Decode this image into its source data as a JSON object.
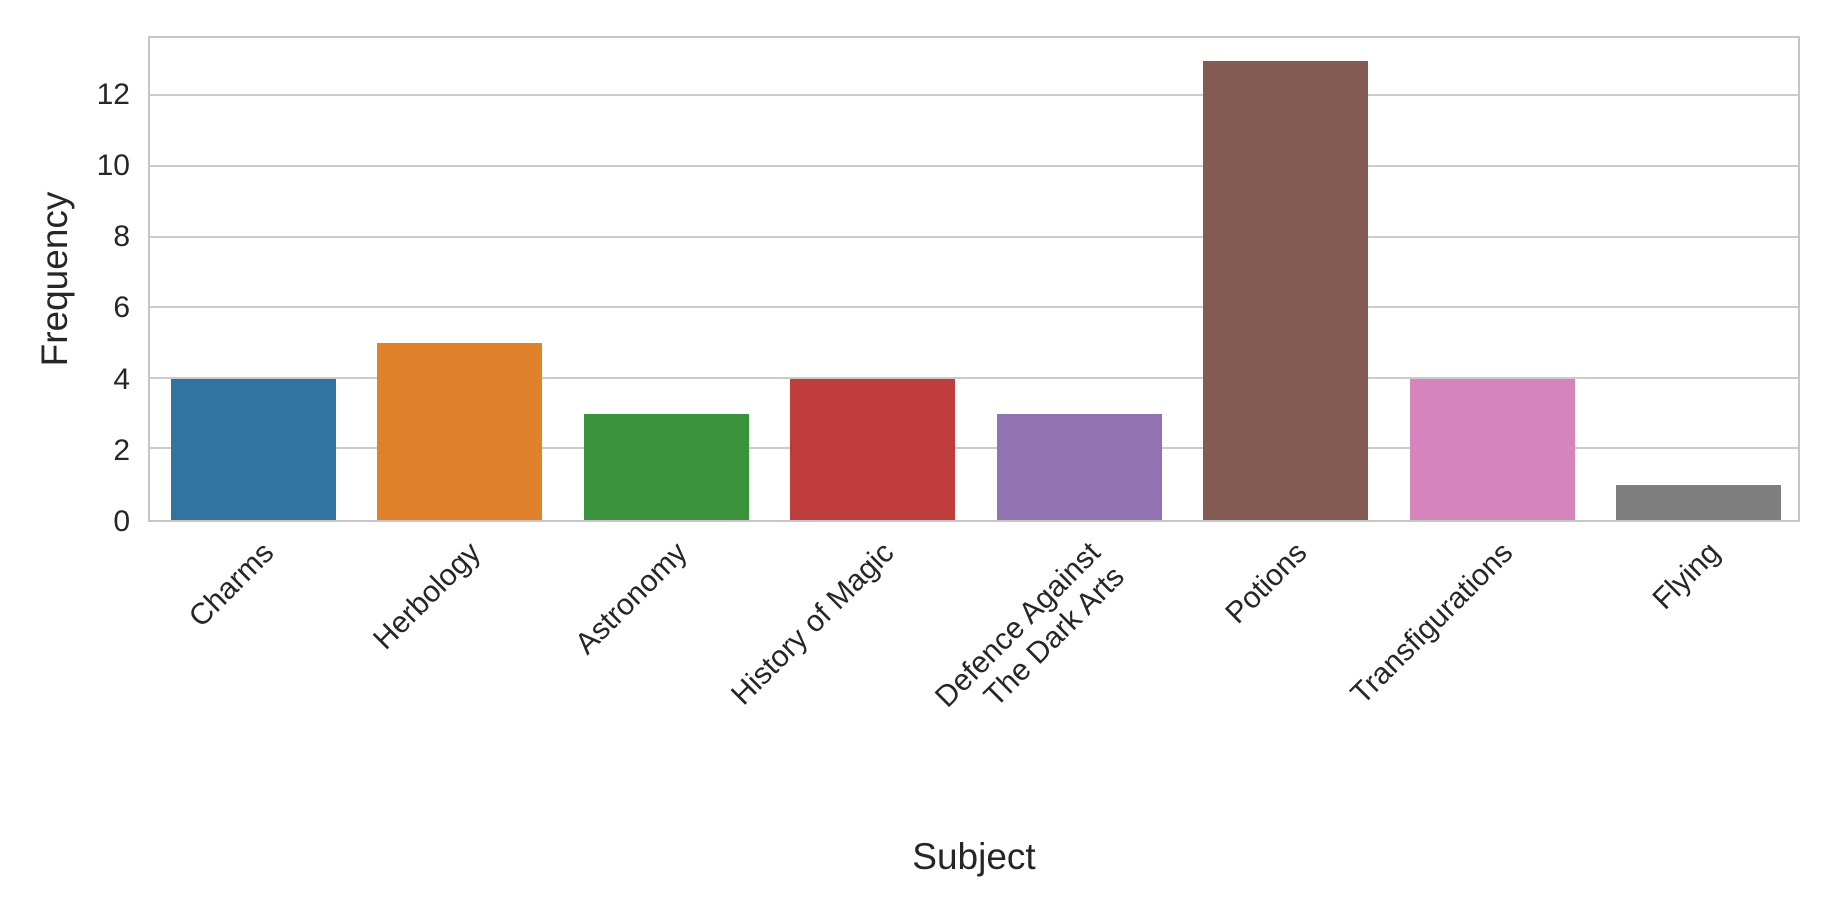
{
  "chart_data": {
    "type": "bar",
    "title": "",
    "xlabel": "Subject",
    "ylabel": "Frequency",
    "categories": [
      "Charms",
      "Herbology",
      "Astronomy",
      "History of Magic",
      "Defence Against\nThe Dark Arts",
      "Potions",
      "Transfigurations",
      "Flying"
    ],
    "values": [
      4,
      5,
      3,
      4,
      3,
      13,
      4,
      1
    ],
    "bar_colors": [
      "#3274a1",
      "#e1812c",
      "#3a923a",
      "#c03d3e",
      "#9372b2",
      "#845b53",
      "#d684bd",
      "#7f7f7f"
    ],
    "yticks": [
      0,
      2,
      4,
      6,
      8,
      10,
      12
    ],
    "ylim": [
      0,
      13.65
    ],
    "bar_width_fraction": 0.8,
    "xtick_rotation_deg": 45,
    "grid": "horizontal",
    "grid_color": "#cbcbcb",
    "axis_edge_color": "#c6c6c6",
    "text_color": "#262626",
    "background_color": "#ffffff",
    "legend": "none"
  }
}
